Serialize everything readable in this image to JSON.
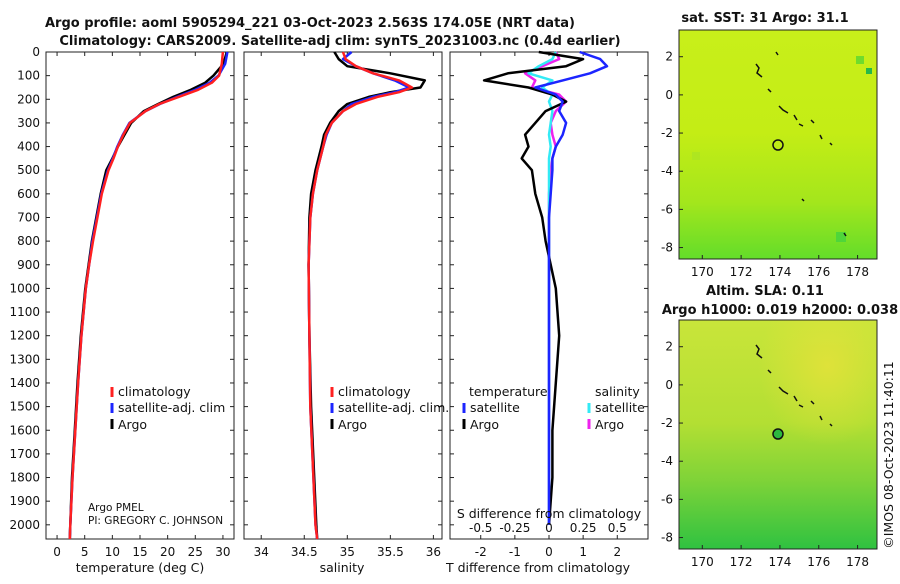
{
  "header": {
    "title_line1": "Argo profile: aoml 5905294_221 03-Oct-2023 2.563S 174.05E (NRT data)",
    "title_line2": "Climatology: CARS2009. Satellite-adj clim: synTS_20231003.nc (0.4d earlier)"
  },
  "colors": {
    "climatology": "#ff2020",
    "satellite": "#1c25ff",
    "argo": "#000000",
    "sat_salinity": "#33eaf5",
    "argo_salinity": "#ee22ee"
  },
  "depth_axis": {
    "ticks": [
      0,
      100,
      200,
      300,
      400,
      500,
      600,
      700,
      800,
      900,
      1000,
      1100,
      1200,
      1300,
      1400,
      1500,
      1600,
      1700,
      1800,
      1900,
      2000
    ],
    "range": [
      0,
      2060
    ]
  },
  "chart_data": [
    {
      "id": "temperature",
      "type": "line",
      "xlabel": "temperature (deg C)",
      "ylabel": "depth",
      "xlim": [
        -2,
        32
      ],
      "ylim": [
        2060,
        0
      ],
      "xticks": [
        0,
        5,
        10,
        15,
        20,
        25,
        30
      ],
      "legend": {
        "position": "middle-right",
        "entries": [
          "climatology",
          "satellite-adj. clim",
          "Argo"
        ]
      },
      "annotation": [
        "Argo PMEL",
        "PI: GREGORY C. JOHNSON"
      ],
      "depths": [
        0,
        50,
        100,
        130,
        160,
        190,
        220,
        250,
        300,
        350,
        400,
        450,
        500,
        600,
        700,
        800,
        900,
        1000,
        1200,
        1400,
        1600,
        1800,
        2000,
        2060
      ],
      "series": [
        {
          "name": "climatology",
          "values": [
            30.0,
            29.8,
            29.3,
            28.0,
            25.5,
            22.0,
            18.5,
            16.0,
            13.2,
            12.0,
            11.0,
            10.2,
            9.3,
            8.1,
            7.3,
            6.5,
            5.8,
            5.2,
            4.4,
            3.8,
            3.3,
            2.8,
            2.4,
            2.3
          ]
        },
        {
          "name": "satellite-adj. clim",
          "values": [
            30.8,
            30.4,
            29.2,
            27.6,
            25.0,
            21.7,
            18.6,
            16.0,
            13.1,
            11.9,
            10.9,
            10.1,
            9.2,
            8.0,
            7.2,
            6.4,
            5.8,
            5.2,
            4.4,
            3.8,
            3.3,
            2.8,
            2.4,
            2.3
          ]
        },
        {
          "name": "Argo",
          "values": [
            30.7,
            30.1,
            28.3,
            26.8,
            24.2,
            21.0,
            18.3,
            15.7,
            13.4,
            12.2,
            11.0,
            10.0,
            8.9,
            7.9,
            7.1,
            6.3,
            5.7,
            5.1,
            4.3,
            3.7,
            3.2,
            2.7,
            2.4,
            2.3
          ]
        }
      ]
    },
    {
      "id": "salinity",
      "type": "line",
      "xlabel": "salinity",
      "ylabel": "depth",
      "xlim": [
        33.8,
        36.1
      ],
      "ylim": [
        2060,
        0
      ],
      "xticks": [
        34,
        34.5,
        35,
        35.5,
        36
      ],
      "legend": {
        "position": "middle-right",
        "entries": [
          "climatology",
          "satellite-adj. clim.",
          "Argo"
        ]
      },
      "depths": [
        0,
        30,
        60,
        90,
        120,
        150,
        170,
        190,
        220,
        250,
        300,
        350,
        400,
        500,
        600,
        700,
        900,
        1200,
        1500,
        2000,
        2060
      ],
      "series": [
        {
          "name": "climatology",
          "values": [
            34.95,
            34.98,
            35.1,
            35.3,
            35.6,
            35.75,
            35.6,
            35.35,
            35.1,
            34.95,
            34.82,
            34.75,
            34.72,
            34.65,
            34.6,
            34.57,
            34.55,
            34.56,
            34.57,
            34.63,
            34.65
          ]
        },
        {
          "name": "satellite-adj. clim.",
          "values": [
            35.05,
            34.95,
            35.1,
            35.3,
            35.55,
            35.72,
            35.55,
            35.3,
            35.05,
            34.95,
            34.82,
            34.76,
            34.72,
            34.65,
            34.6,
            34.57,
            34.55,
            34.56,
            34.57,
            34.63,
            34.65
          ]
        },
        {
          "name": "Argo",
          "values": [
            34.85,
            34.9,
            35.0,
            35.5,
            35.9,
            35.85,
            35.5,
            35.25,
            35.0,
            34.9,
            34.8,
            34.73,
            34.7,
            34.63,
            34.58,
            34.56,
            34.55,
            34.56,
            34.58,
            34.64,
            34.65
          ]
        }
      ]
    },
    {
      "id": "differences",
      "type": "line",
      "xlabel": "T difference from climatology",
      "x2label": "S difference from climatology",
      "xlim": [
        -2.9,
        2.9
      ],
      "ylim": [
        2060,
        0
      ],
      "xticks": [
        -2,
        -1,
        0,
        1,
        2
      ],
      "x2ticks": [
        "-0.5",
        "-0.25",
        "0",
        "0.25",
        "0.5"
      ],
      "legend": {
        "position": "middle",
        "temperature_title": "temperature",
        "salinity_title": "salinity",
        "entries": [
          "satellite",
          "Argo",
          "satellite",
          "Argo"
        ]
      },
      "depths": [
        0,
        30,
        60,
        90,
        120,
        150,
        180,
        210,
        250,
        300,
        350,
        400,
        450,
        500,
        600,
        700,
        800,
        1000,
        1200,
        1400,
        1600,
        1800,
        2000
      ],
      "series": [
        {
          "name": "temperature satellite",
          "values": [
            0.9,
            1.5,
            1.7,
            1.2,
            0.4,
            -0.4,
            0.2,
            0.4,
            0.3,
            0.5,
            0.4,
            0.2,
            0.1,
            0.1,
            0.05,
            0.0,
            0.0,
            0.0,
            0.0,
            0.0,
            0.0,
            0.0,
            0.0
          ]
        },
        {
          "name": "temperature Argo",
          "values": [
            -0.3,
            1.0,
            0.5,
            -1.2,
            -1.9,
            -0.6,
            0.1,
            0.5,
            -0.1,
            -0.4,
            -0.7,
            -0.6,
            -0.8,
            -0.5,
            -0.4,
            -0.2,
            -0.1,
            0.2,
            0.3,
            0.2,
            0.1,
            0.1,
            0.0
          ]
        },
        {
          "name": "salinity satellite",
          "values": [
            0.2,
            0.1,
            -0.3,
            -0.6,
            0.1,
            -0.2,
            0.1,
            0.0,
            0.1,
            0.05,
            0.0,
            0.05,
            0.0,
            0.0,
            0.0,
            0.0,
            0.0,
            0.0,
            0.0,
            0.0,
            0.0,
            0.0,
            0.0
          ]
        },
        {
          "name": "salinity Argo",
          "values": [
            0.2,
            0.3,
            -0.2,
            -0.7,
            -0.4,
            -0.5,
            0.3,
            0.5,
            0.2,
            0.05,
            0.1,
            0.2,
            0.1,
            0.05,
            0.0,
            0.0,
            0.0,
            0.0,
            0.0,
            0.0,
            0.0,
            0.0,
            0.0
          ]
        }
      ]
    }
  ],
  "maps": {
    "sst": {
      "title": "sat. SST: 31 Argo: 31.1",
      "xticks": [
        170,
        172,
        174,
        176,
        178
      ],
      "yticks": [
        2,
        0,
        -2,
        -4,
        -6,
        -8
      ]
    },
    "sla": {
      "title1": "Altim. SLA: 0.11",
      "title2": "Argo h1000: 0.019 h2000: 0.038",
      "xticks": [
        170,
        172,
        174,
        176,
        178
      ],
      "yticks": [
        2,
        0,
        -2,
        -4,
        -6,
        -8
      ]
    },
    "argo_position": {
      "lon": 174.05,
      "lat": -2.563
    }
  },
  "footer": {
    "stamp": "©IMOS 08-Oct-2023 11:40:11"
  }
}
